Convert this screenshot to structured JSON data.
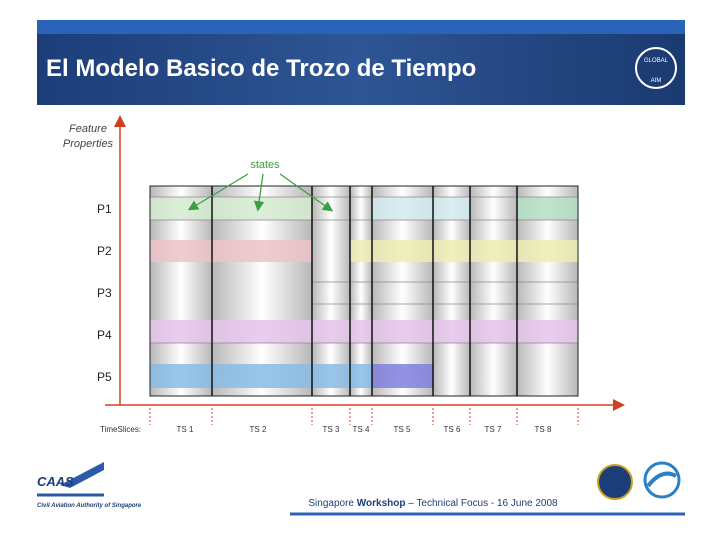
{
  "header": {
    "title": "El Modelo Basico de Trozo de Tiempo",
    "logo_top": "GLOBAL",
    "logo_bottom": "AIM"
  },
  "diagram": {
    "y_axis_label": [
      "Feature",
      "Properties"
    ],
    "annotation": "states",
    "properties": [
      "P1",
      "P2",
      "P3",
      "P4",
      "P5"
    ],
    "time_axis_label": "TimeSlices:",
    "time_slices": [
      "TS 1",
      "TS 2",
      "TS 3",
      "TS 4",
      "TS 5",
      "TS 6",
      "TS 7",
      "TS 8"
    ]
  },
  "footer": {
    "org_short": "CAAS",
    "org_name": "Civil Aviation Authority of Singapore",
    "text_before": "Singapore ",
    "text_bold": "Workshop",
    "text_after": " – Technical Focus - 16 June 2008"
  }
}
